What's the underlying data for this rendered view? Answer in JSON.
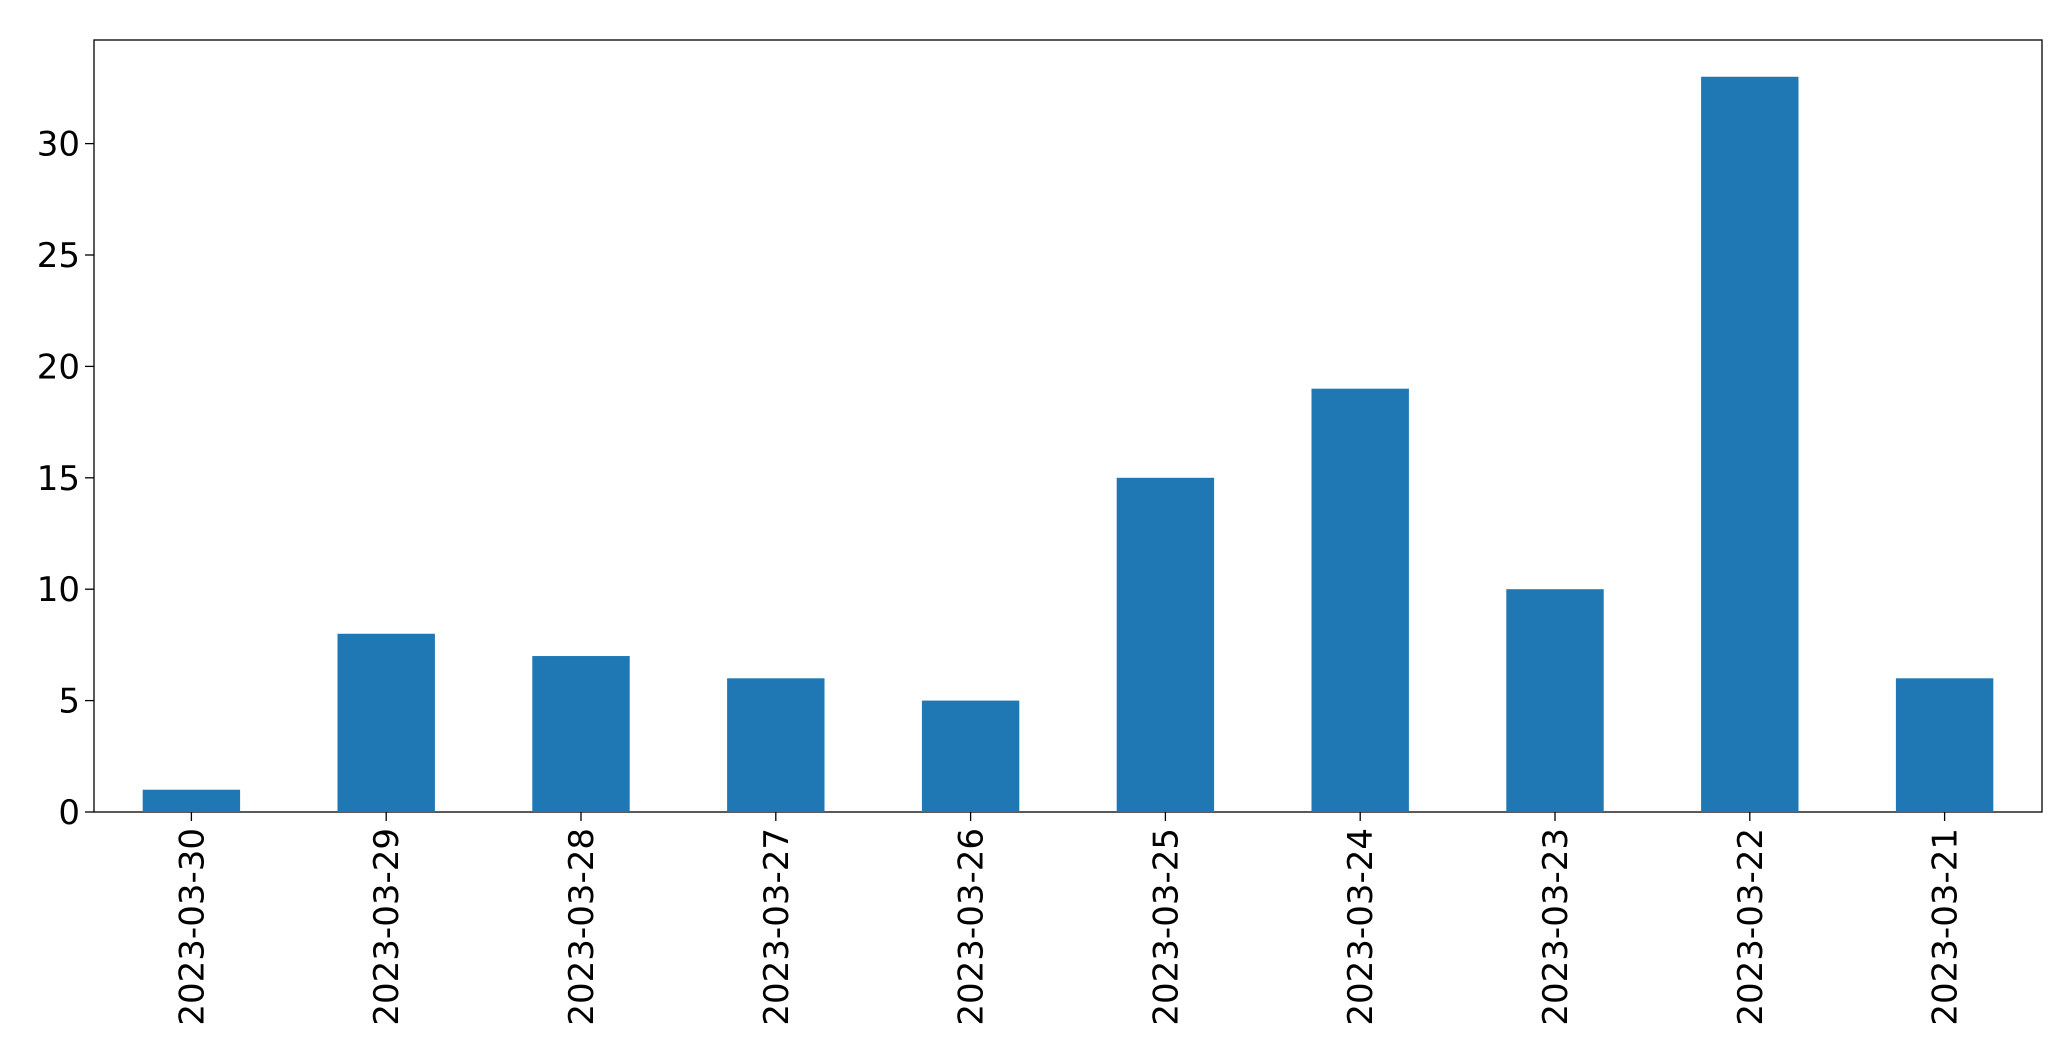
{
  "chart_data": {
    "type": "bar",
    "categories": [
      "2023-03-30",
      "2023-03-29",
      "2023-03-28",
      "2023-03-27",
      "2023-03-26",
      "2023-03-25",
      "2023-03-24",
      "2023-03-23",
      "2023-03-22",
      "2023-03-21"
    ],
    "values": [
      1,
      8,
      7,
      6,
      5,
      15,
      19,
      10,
      33,
      6
    ],
    "color": "#1f77b4",
    "ylim": [
      0,
      34.65
    ],
    "yticks": [
      0,
      5,
      10,
      15,
      20,
      25,
      30
    ],
    "grid": false
  }
}
